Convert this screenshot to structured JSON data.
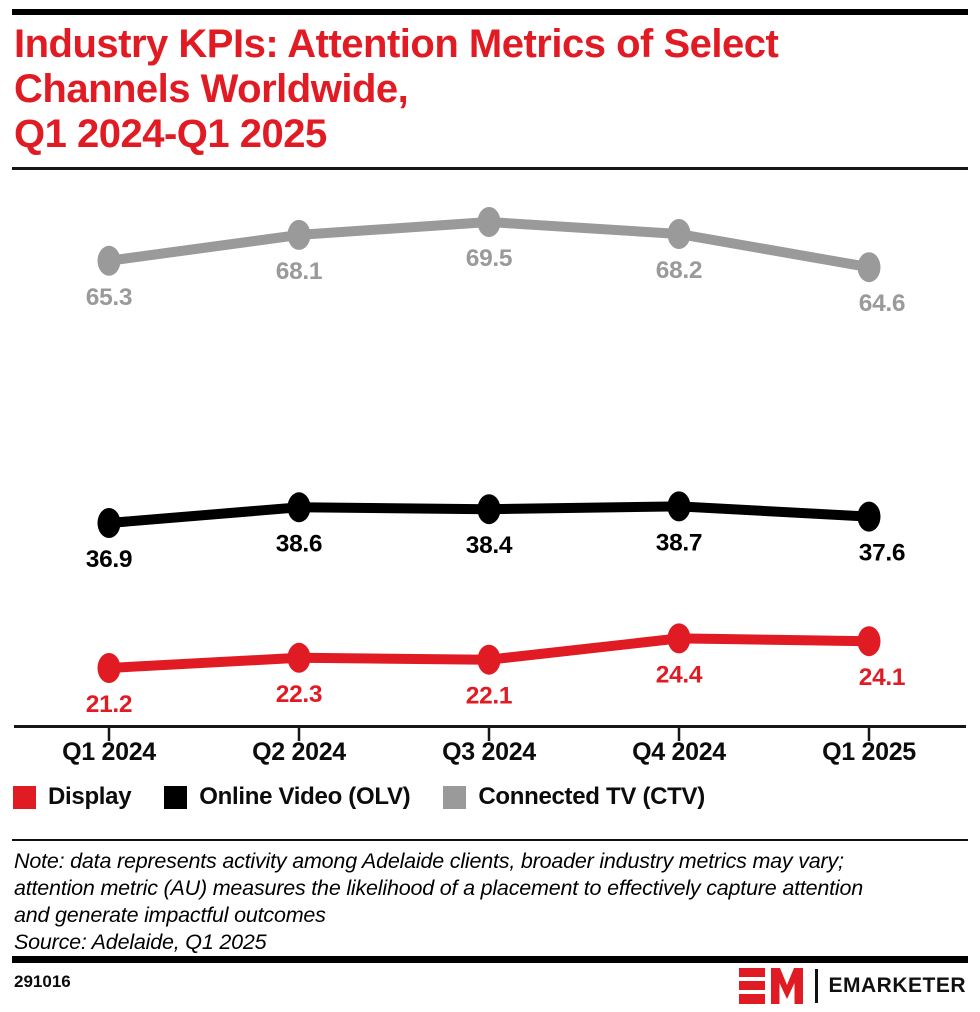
{
  "header": {
    "title_lines": [
      "Industry KPIs: Attention Metrics of Select",
      "Channels Worldwide,",
      "Q1 2024-Q1 2025"
    ]
  },
  "chart_data": {
    "type": "line",
    "title": "Industry KPIs: Attention Metrics of Select Channels Worldwide, Q1 2024-Q1 2025",
    "categories": [
      "Q1 2024",
      "Q2 2024",
      "Q3 2024",
      "Q4 2024",
      "Q1 2025"
    ],
    "series": [
      {
        "name": "Display",
        "color": "#e11b23",
        "values": [
          21.2,
          22.3,
          22.1,
          24.4,
          24.1
        ]
      },
      {
        "name": "Online Video (OLV)",
        "color": "#000000",
        "values": [
          36.9,
          38.6,
          38.4,
          38.7,
          37.6
        ]
      },
      {
        "name": "Connected TV (CTV)",
        "color": "#9a9a9a",
        "values": [
          65.3,
          68.1,
          69.5,
          68.2,
          64.6
        ]
      }
    ],
    "xlabel": "",
    "ylabel": "",
    "grid": false,
    "value_labels": true,
    "legend_position": "bottom",
    "yaxis_shown": false
  },
  "footnote": {
    "note_lines": [
      "Note: data represents activity among Adelaide clients, broader industry metrics may vary;",
      "attention metric (AU) measures the likelihood of a placement to effectively capture attention",
      "and generate impactful outcomes"
    ],
    "source": "Source: Adelaide, Q1 2025"
  },
  "footer": {
    "chart_id": "291016",
    "brand": "EMARKETER"
  },
  "colors": {
    "accent_red": "#e11b23",
    "series_black": "#000000",
    "series_gray": "#9a9a9a",
    "bar_black": "#000000"
  }
}
